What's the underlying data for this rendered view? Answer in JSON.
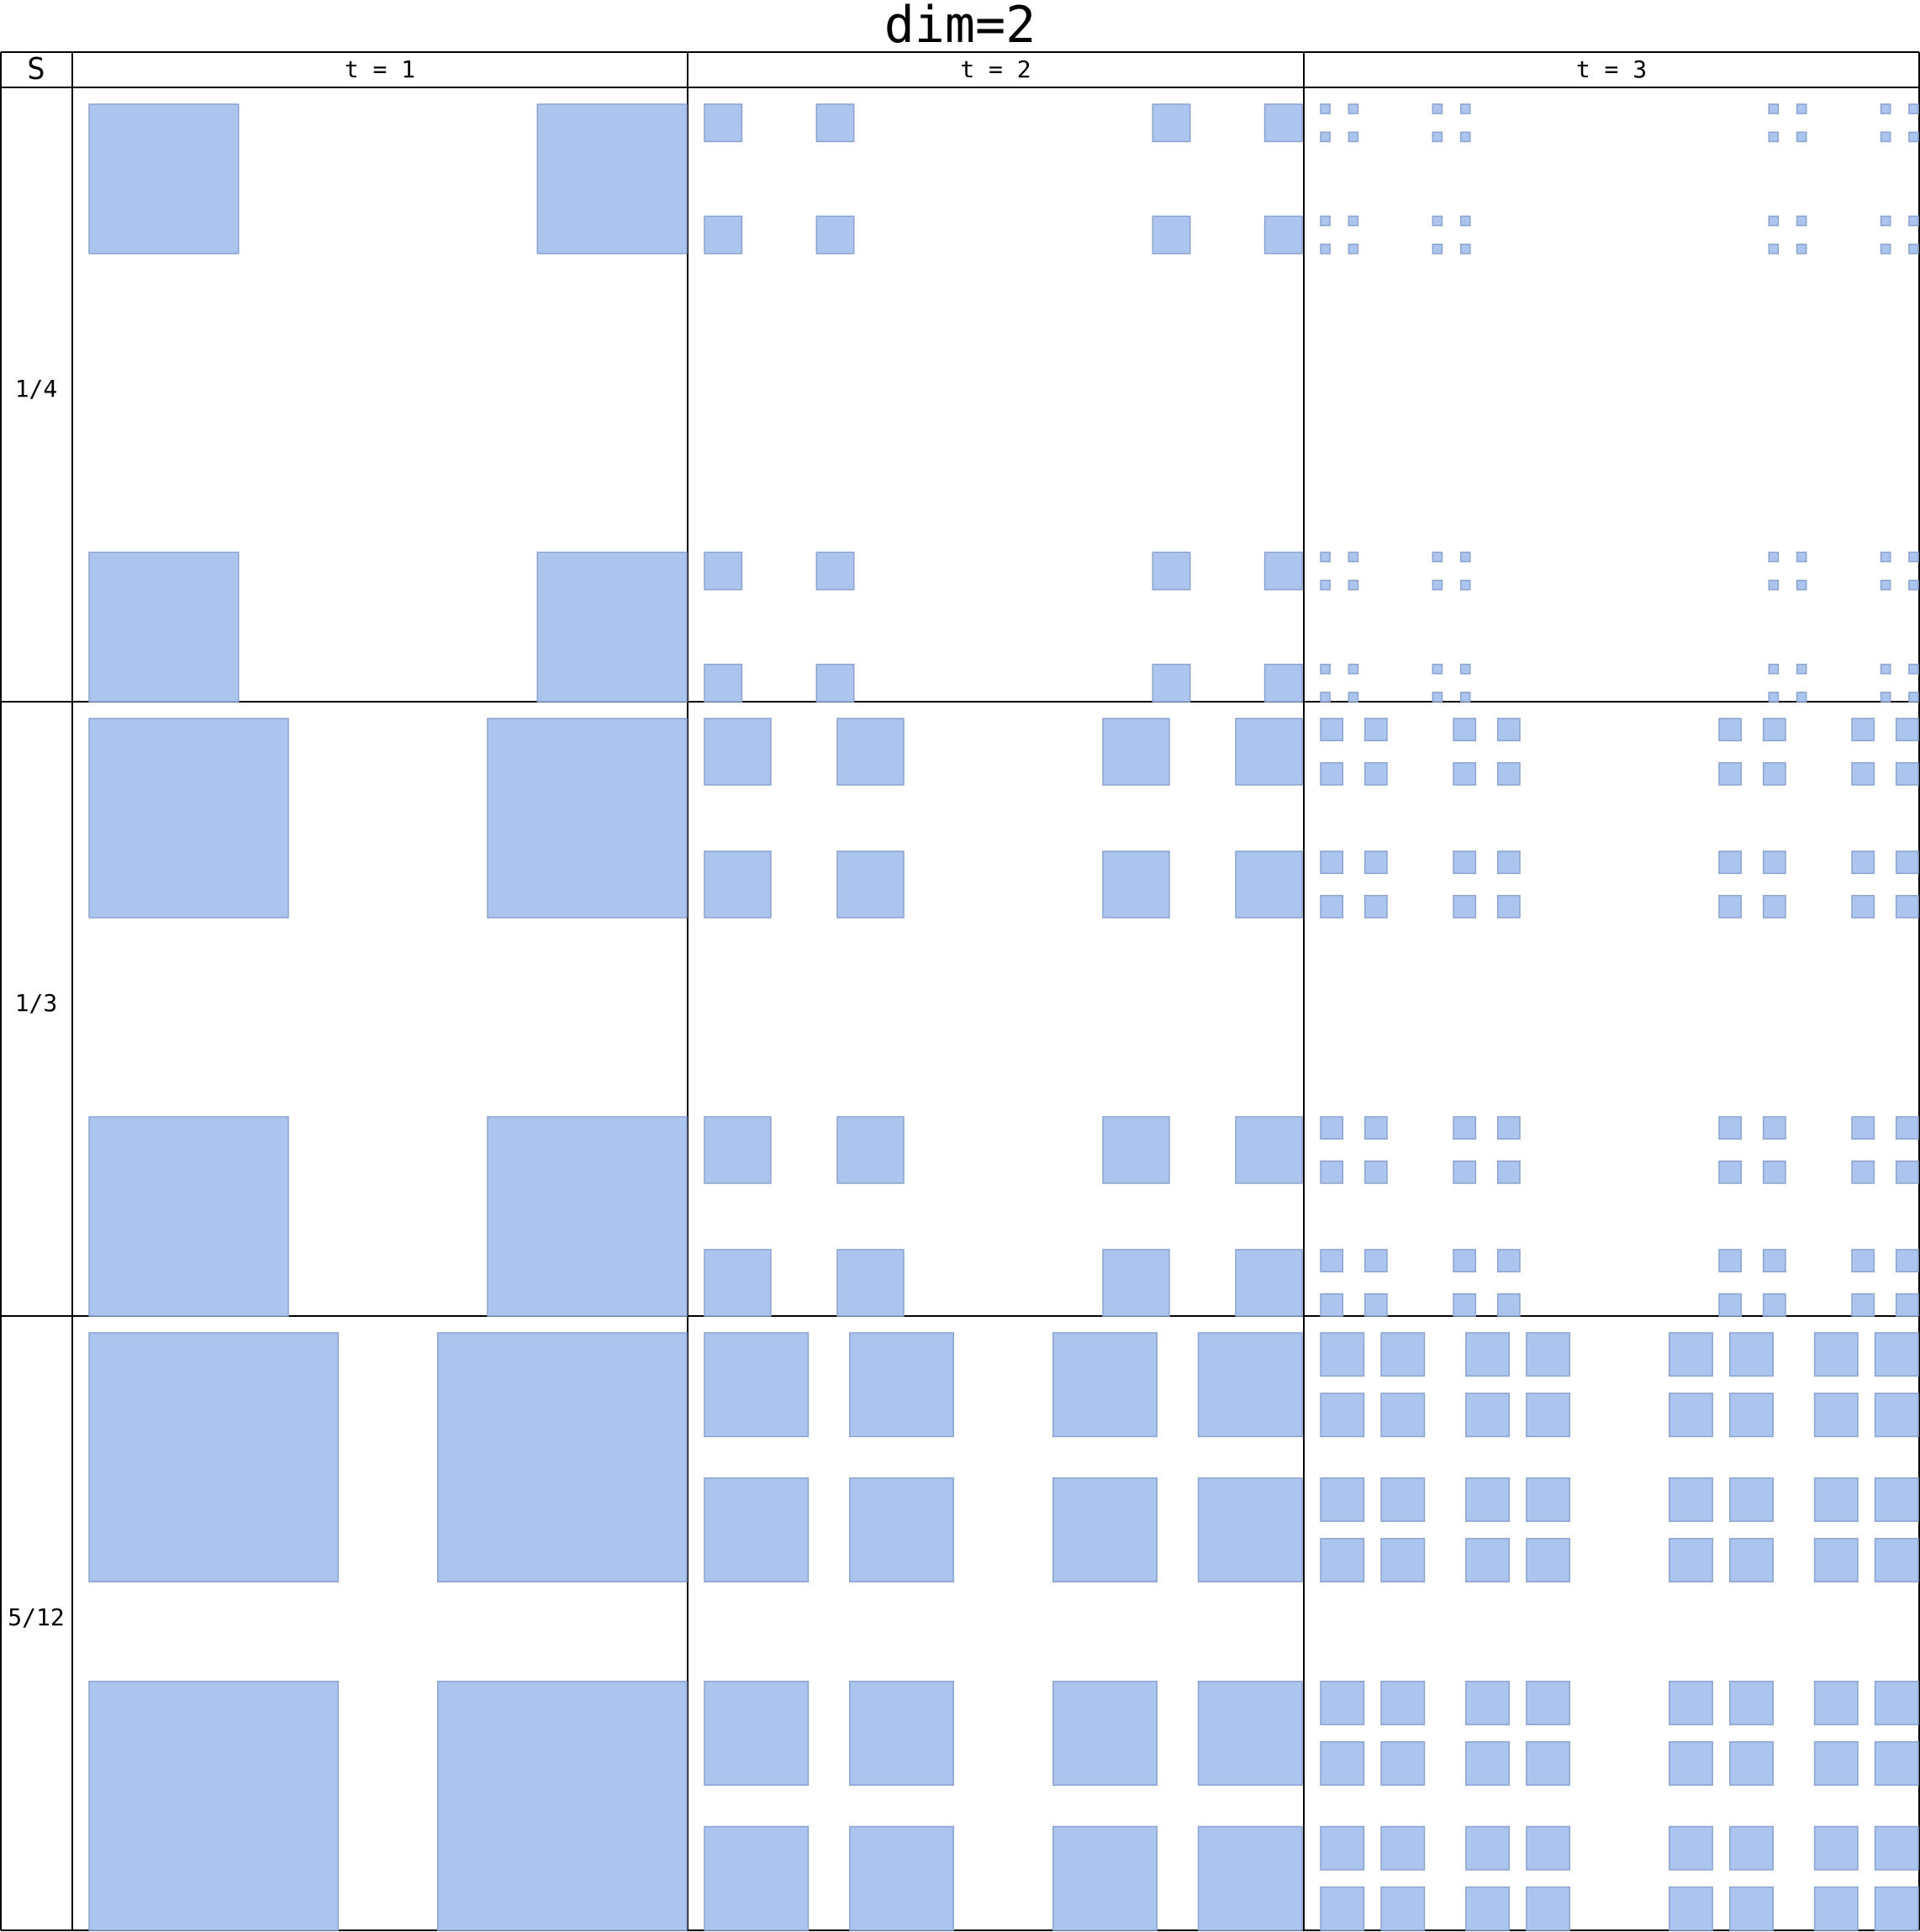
{
  "title": "dim=2",
  "header": {
    "corner": "S",
    "columns": [
      "t = 1",
      "t = 2",
      "t = 3"
    ]
  },
  "rows": [
    {
      "label": "1/4",
      "s": 0.25
    },
    {
      "label": "1/3",
      "s": 0.3333333
    },
    {
      "label": "5/12",
      "s": 0.4166667
    }
  ],
  "iterations": [
    1,
    2,
    3
  ],
  "colors": {
    "square_fill": "#abc5ef",
    "square_stroke": "#8aa3cf",
    "grid_line": "#000000",
    "background": "#ffffff"
  }
}
